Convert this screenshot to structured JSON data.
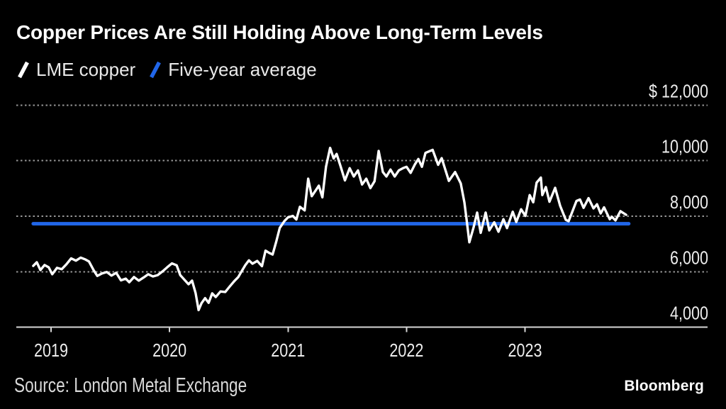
{
  "header": {
    "title": "Copper Prices Are Still Holding Above Long-Term Levels"
  },
  "legend": [
    {
      "label": "LME copper",
      "color": "#ffffff"
    },
    {
      "label": "Five-year average",
      "color": "#2166e8"
    }
  ],
  "footer": {
    "source": "Source: London Metal Exchange",
    "brand": "Bloomberg"
  },
  "chart_data": {
    "type": "line",
    "title": "Copper Prices Are Still Holding Above Long-Term Levels",
    "xlabel": "",
    "ylabel": "",
    "unit": "USD per metric ton",
    "grid": "horizontal-dotted",
    "legend_position": "top-left",
    "background_color": "#000000",
    "axis_color": "#d6d6d6",
    "grid_color": "#969696",
    "label_color": "#ededed",
    "x_range": [
      2018.7068,
      2024.5405
    ],
    "y_range": [
      4000,
      12000
    ],
    "x_ticks": [
      {
        "value": 2019,
        "label": "2019"
      },
      {
        "value": 2020,
        "label": "2020"
      },
      {
        "value": 2021,
        "label": "2021"
      },
      {
        "value": 2022,
        "label": "2022"
      },
      {
        "value": 2023,
        "label": "2023"
      }
    ],
    "y_ticks": [
      {
        "value": 12000,
        "label": "$ 12,000"
      },
      {
        "value": 10000,
        "label": "10,000"
      },
      {
        "value": 8000,
        "label": "8,000"
      },
      {
        "value": 6000,
        "label": "6,000"
      },
      {
        "value": 4000,
        "label": "4,000"
      }
    ],
    "series": [
      {
        "name": "LME copper",
        "color": "#ffffff",
        "width": 3.4,
        "points": [
          [
            2018.85,
            6210
          ],
          [
            2018.88,
            6340
          ],
          [
            2018.91,
            6060
          ],
          [
            2018.945,
            6240
          ],
          [
            2018.98,
            6160
          ],
          [
            2019.01,
            5910
          ],
          [
            2019.05,
            6140
          ],
          [
            2019.09,
            6090
          ],
          [
            2019.13,
            6270
          ],
          [
            2019.17,
            6480
          ],
          [
            2019.21,
            6400
          ],
          [
            2019.25,
            6510
          ],
          [
            2019.29,
            6440
          ],
          [
            2019.32,
            6370
          ],
          [
            2019.36,
            6050
          ],
          [
            2019.39,
            5850
          ],
          [
            2019.43,
            5940
          ],
          [
            2019.47,
            5990
          ],
          [
            2019.51,
            5860
          ],
          [
            2019.55,
            5960
          ],
          [
            2019.59,
            5690
          ],
          [
            2019.63,
            5750
          ],
          [
            2019.66,
            5620
          ],
          [
            2019.7,
            5810
          ],
          [
            2019.74,
            5680
          ],
          [
            2019.78,
            5790
          ],
          [
            2019.82,
            5910
          ],
          [
            2019.86,
            5830
          ],
          [
            2019.9,
            5880
          ],
          [
            2019.94,
            6010
          ],
          [
            2019.98,
            6160
          ],
          [
            2020.02,
            6300
          ],
          [
            2020.06,
            6230
          ],
          [
            2020.09,
            5880
          ],
          [
            2020.13,
            5690
          ],
          [
            2020.16,
            5550
          ],
          [
            2020.19,
            5680
          ],
          [
            2020.22,
            5230
          ],
          [
            2020.245,
            4620
          ],
          [
            2020.27,
            4870
          ],
          [
            2020.3,
            5050
          ],
          [
            2020.33,
            4880
          ],
          [
            2020.36,
            5220
          ],
          [
            2020.39,
            5090
          ],
          [
            2020.43,
            5290
          ],
          [
            2020.47,
            5270
          ],
          [
            2020.51,
            5480
          ],
          [
            2020.55,
            5680
          ],
          [
            2020.58,
            5810
          ],
          [
            2020.61,
            6030
          ],
          [
            2020.64,
            6240
          ],
          [
            2020.67,
            6410
          ],
          [
            2020.7,
            6290
          ],
          [
            2020.74,
            6390
          ],
          [
            2020.78,
            6200
          ],
          [
            2020.81,
            6760
          ],
          [
            2020.84,
            6680
          ],
          [
            2020.87,
            6620
          ],
          [
            2020.9,
            7080
          ],
          [
            2020.93,
            7580
          ],
          [
            2020.97,
            7830
          ],
          [
            2021.0,
            7960
          ],
          [
            2021.04,
            8010
          ],
          [
            2021.07,
            7880
          ],
          [
            2021.1,
            8340
          ],
          [
            2021.14,
            8210
          ],
          [
            2021.17,
            9350
          ],
          [
            2021.2,
            8720
          ],
          [
            2021.23,
            8910
          ],
          [
            2021.26,
            9100
          ],
          [
            2021.29,
            8680
          ],
          [
            2021.32,
            9780
          ],
          [
            2021.355,
            10460
          ],
          [
            2021.385,
            10080
          ],
          [
            2021.41,
            10240
          ],
          [
            2021.445,
            9780
          ],
          [
            2021.48,
            9290
          ],
          [
            2021.52,
            9730
          ],
          [
            2021.555,
            9430
          ],
          [
            2021.59,
            9650
          ],
          [
            2021.625,
            9140
          ],
          [
            2021.66,
            9350
          ],
          [
            2021.695,
            9010
          ],
          [
            2021.73,
            9260
          ],
          [
            2021.765,
            10350
          ],
          [
            2021.8,
            9590
          ],
          [
            2021.83,
            9430
          ],
          [
            2021.865,
            9680
          ],
          [
            2021.9,
            9430
          ],
          [
            2021.935,
            9650
          ],
          [
            2021.97,
            9730
          ],
          [
            2022.0,
            9780
          ],
          [
            2022.035,
            9560
          ],
          [
            2022.07,
            9860
          ],
          [
            2022.1,
            10060
          ],
          [
            2022.13,
            9780
          ],
          [
            2022.16,
            10280
          ],
          [
            2022.22,
            10390
          ],
          [
            2022.267,
            9850
          ],
          [
            2022.297,
            10090
          ],
          [
            2022.357,
            9270
          ],
          [
            2022.41,
            9590
          ],
          [
            2022.458,
            9180
          ],
          [
            2022.488,
            8500
          ],
          [
            2022.506,
            7900
          ],
          [
            2022.53,
            7060
          ],
          [
            2022.566,
            7600
          ],
          [
            2022.596,
            8130
          ],
          [
            2022.626,
            7400
          ],
          [
            2022.668,
            8130
          ],
          [
            2022.698,
            7490
          ],
          [
            2022.74,
            7780
          ],
          [
            2022.776,
            7440
          ],
          [
            2022.818,
            7890
          ],
          [
            2022.848,
            7570
          ],
          [
            2022.896,
            8160
          ],
          [
            2022.926,
            7790
          ],
          [
            2022.967,
            8250
          ],
          [
            2023.003,
            8010
          ],
          [
            2023.039,
            8760
          ],
          [
            2023.069,
            8500
          ],
          [
            2023.098,
            9210
          ],
          [
            2023.134,
            9390
          ],
          [
            2023.146,
            8760
          ],
          [
            2023.176,
            9050
          ],
          [
            2023.206,
            8520
          ],
          [
            2023.254,
            9020
          ],
          [
            2023.296,
            8380
          ],
          [
            2023.344,
            7870
          ],
          [
            2023.368,
            7820
          ],
          [
            2023.434,
            8550
          ],
          [
            2023.464,
            8600
          ],
          [
            2023.494,
            8300
          ],
          [
            2023.536,
            8650
          ],
          [
            2023.578,
            8280
          ],
          [
            2023.608,
            8430
          ],
          [
            2023.638,
            8100
          ],
          [
            2023.667,
            8320
          ],
          [
            2023.715,
            7890
          ],
          [
            2023.733,
            7980
          ],
          [
            2023.763,
            7850
          ],
          [
            2023.805,
            8180
          ],
          [
            2023.853,
            8050
          ]
        ]
      },
      {
        "name": "Five-year average",
        "color": "#2166e8",
        "width": 5,
        "points": [
          [
            2018.85,
            7730
          ],
          [
            2023.875,
            7730
          ]
        ]
      }
    ]
  }
}
